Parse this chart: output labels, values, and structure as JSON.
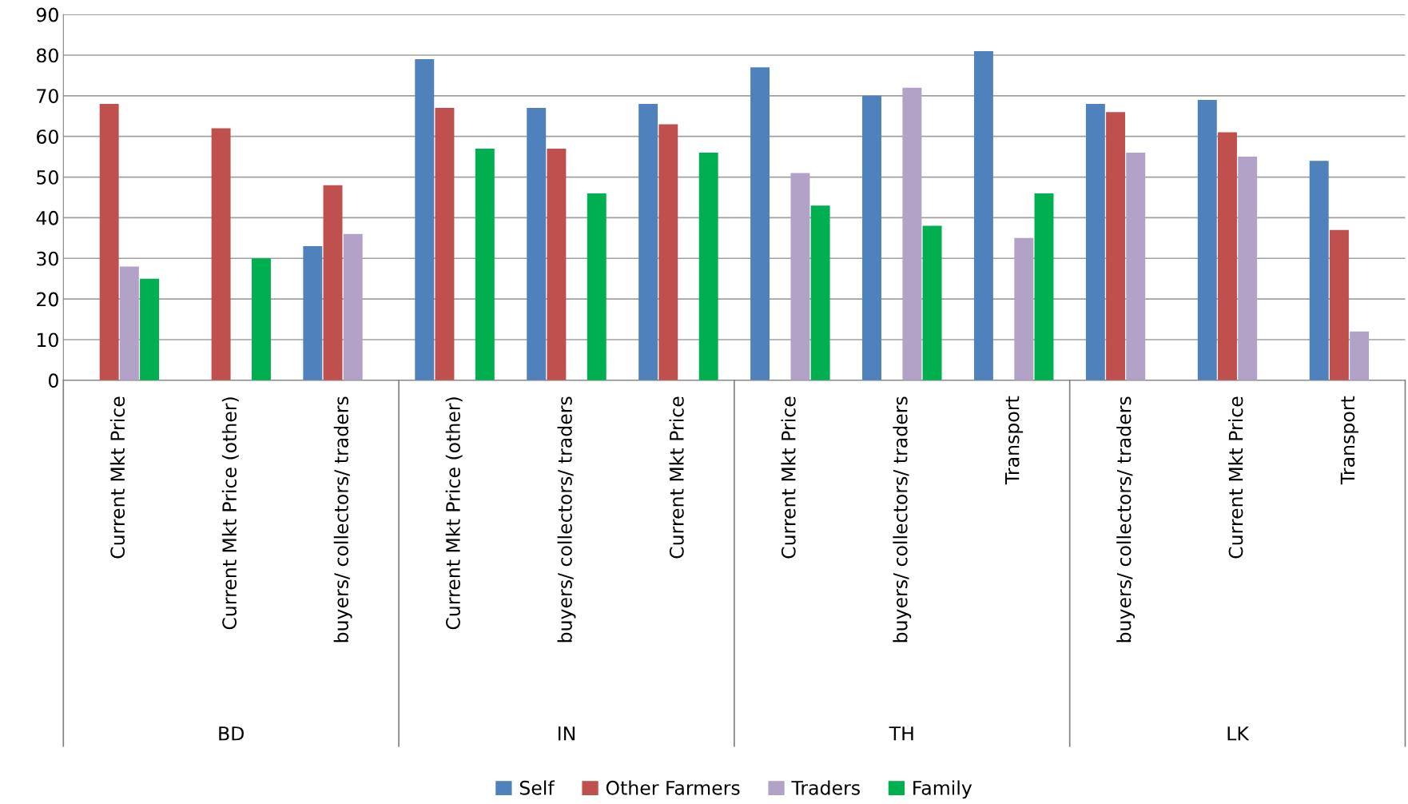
{
  "chart_data": {
    "type": "bar",
    "categories": [
      "Current Mkt Price",
      "Current Mkt Price (other)",
      "buyers/ collectors/ traders",
      "Current Mkt Price (other)",
      "buyers/ collectors/ traders",
      "Current Mkt Price",
      "Current Mkt Price",
      "buyers/ collectors/ traders",
      "Transport",
      "buyers/ collectors/ traders",
      "Current Mkt Price",
      "Transport"
    ],
    "series": [
      {
        "name": "Self",
        "color": "#4f81bd",
        "values": [
          null,
          null,
          33,
          79,
          67,
          68,
          77,
          70,
          81,
          68,
          69,
          54
        ]
      },
      {
        "name": "Other Farmers",
        "color": "#c0504d",
        "values": [
          68,
          62,
          48,
          67,
          57,
          63,
          null,
          null,
          null,
          66,
          61,
          37
        ]
      },
      {
        "name": "Traders",
        "color": "#b3a2c7",
        "values": [
          28,
          null,
          36,
          null,
          null,
          null,
          51,
          72,
          35,
          56,
          55,
          12
        ]
      },
      {
        "name": "Family",
        "color": "#00b050",
        "values": [
          25,
          30,
          null,
          57,
          46,
          56,
          43,
          38,
          46,
          null,
          null,
          null
        ]
      }
    ],
    "annotations": [
      "BD",
      "IN",
      "TH",
      "LK"
    ],
    "ylim": [
      0,
      90
    ],
    "yticks": [
      0,
      10,
      20,
      30,
      40,
      50,
      60,
      70,
      80,
      90
    ],
    "grid": "y",
    "legend": "bottom"
  }
}
